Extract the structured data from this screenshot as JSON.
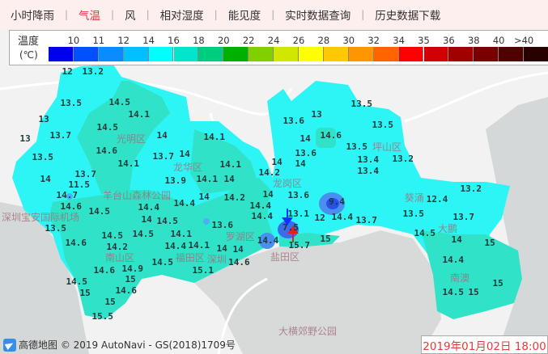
{
  "nav": {
    "items": [
      "小时降雨",
      "气温",
      "风",
      "相对湿度",
      "能见度",
      "实时数据查询",
      "历史数据下载"
    ],
    "active": 1
  },
  "legend": {
    "title": "温度",
    "unit": "(℃)",
    "labels": [
      "10",
      "11",
      "12",
      "14",
      "16",
      "18",
      "20",
      "22",
      "24",
      "26",
      "28",
      "30",
      "32",
      "34",
      "35",
      "36",
      "38",
      "40",
      ">40"
    ],
    "colors": [
      "#0000ee",
      "#0050ff",
      "#0a8cff",
      "#00c0ff",
      "#00ffff",
      "#00e5cc",
      "#00cc80",
      "#00b000",
      "#80d000",
      "#d0e800",
      "#ffff00",
      "#ffc800",
      "#ff9600",
      "#ff6400",
      "#ff0000",
      "#d20000",
      "#a00000",
      "#780000",
      "#500000",
      "#280000"
    ]
  },
  "map": {
    "values": [
      "12",
      "13.2",
      "13.5",
      "14.5",
      "14.1",
      "13",
      "14.5",
      "13",
      "13.7",
      "14",
      "14.1",
      "13.5",
      "14.6",
      "14.1",
      "13.7",
      "14",
      "14.1",
      "14",
      "13.7",
      "13.9",
      "14.1",
      "14",
      "11.5",
      "14.7",
      "14.2",
      "14",
      "14.6",
      "14.5",
      "14.4",
      "14.4",
      "14.4",
      "13.5",
      "14",
      "14.5",
      "13.6",
      "14.5",
      "14.1",
      "14.6",
      "14.5",
      "14.2",
      "14.1",
      "14.4",
      "14",
      "14",
      "14.6",
      "14.9",
      "14.5",
      "15.1",
      "14.6",
      "14.5",
      "15",
      "15",
      "14.6",
      "15",
      "15.5",
      "13.5",
      "13",
      "13.6",
      "13.5",
      "14",
      "14.6",
      "13.5",
      "13.6",
      "13.4",
      "13.2",
      "14",
      "14",
      "13.4",
      "14.2",
      "13.6",
      "13.2",
      "14",
      "14.4",
      "9.4",
      "12.4",
      "13.1",
      "12",
      "14.4",
      "13.7",
      "13.5",
      "13.7",
      "7.5",
      "14.5",
      "14",
      "15",
      "15",
      "14.4",
      "15.7",
      "14.4",
      "14.5",
      "15",
      "15"
    ],
    "places": [
      "光明区",
      "龙华区",
      "龙岗区",
      "坪山区",
      "葵涌",
      "大鹏",
      "南澳",
      "南山区",
      "福田区",
      "罗湖区",
      "盐田区",
      "深圳宝安国际机场",
      "羊台山森林公园",
      "大横郊野公园",
      "深圳"
    ],
    "markers": {
      "wind_down": "blue-arrow",
      "wind_up": "red-arrow"
    }
  },
  "footer": {
    "attribution": "高德地图 © 2019 AutoNavi - GS(2018)1709号",
    "timestamp": "2019年01月02日 18:00"
  }
}
